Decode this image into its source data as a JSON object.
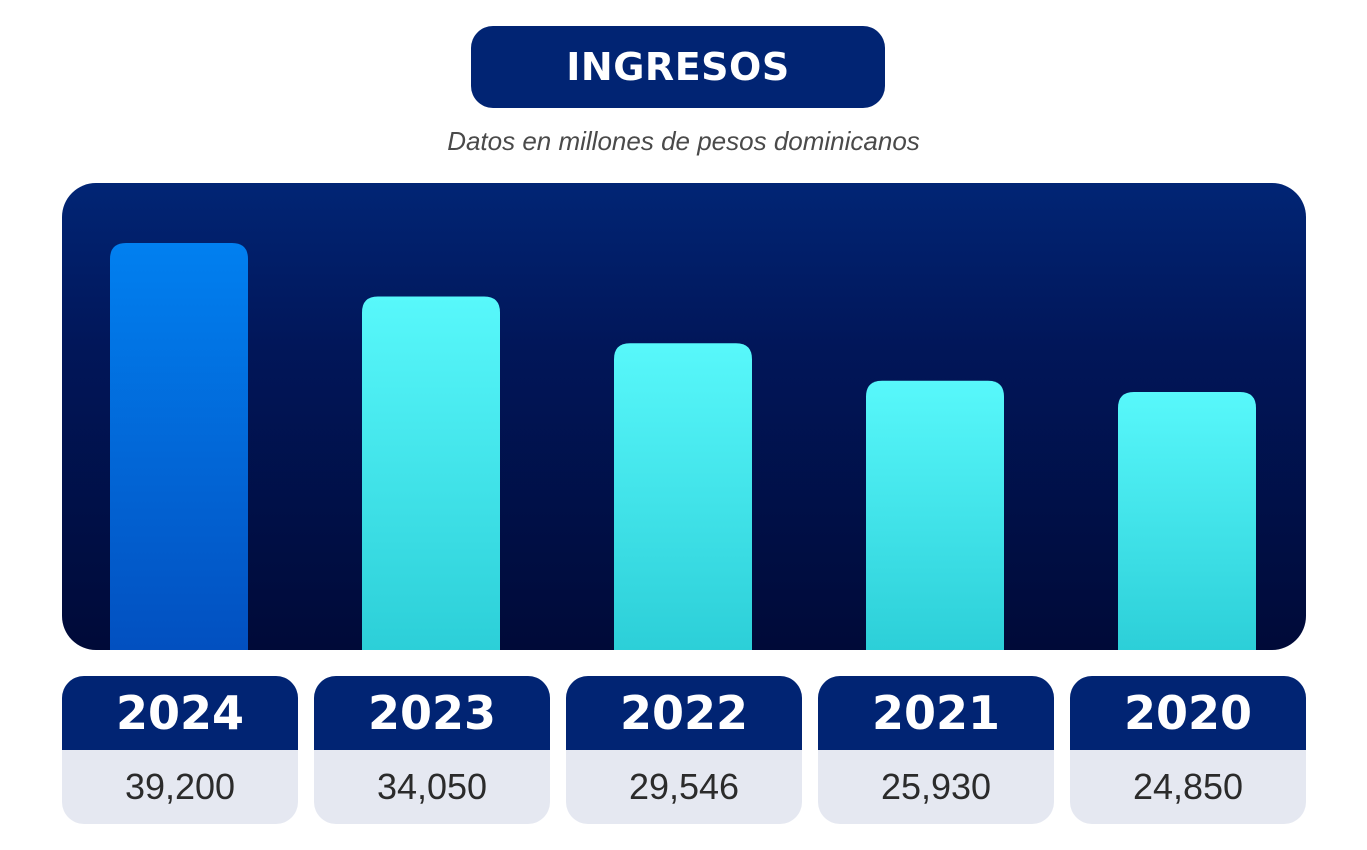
{
  "title": "INGRESOS",
  "subtitle": "Datos en millones de pesos dominicanos",
  "colors": {
    "title_bg": "#012473",
    "panel_top": "#012575",
    "panel_bottom": "#000a38",
    "highlight_bar_top": "#0180f0",
    "highlight_bar_bottom": "#0250c0",
    "bar_top": "#58f8fb",
    "bar_bottom": "#2ccfd8",
    "card_header": "#012473",
    "card_body": "#e5e8f1"
  },
  "chart_data": {
    "type": "bar",
    "categories": [
      "2024",
      "2023",
      "2022",
      "2021",
      "2020"
    ],
    "values": [
      39200,
      34050,
      29546,
      25930,
      24850
    ],
    "value_labels": [
      "39,200",
      "34,050",
      "29,546",
      "25,930",
      "24,850"
    ],
    "highlight_index": 0,
    "title": "INGRESOS",
    "subtitle": "Datos en millones de pesos dominicanos",
    "xlabel": "",
    "ylabel": "",
    "grid": false,
    "legend": "none"
  }
}
